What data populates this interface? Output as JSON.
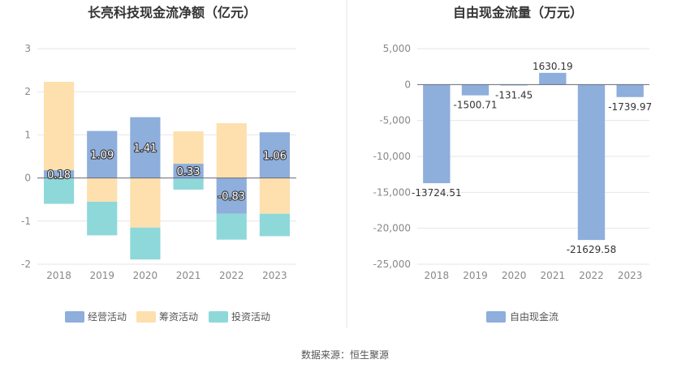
{
  "chart_data": [
    {
      "type": "bar",
      "stacked": true,
      "title": "长亮科技现金流净额（亿元）",
      "categories": [
        "2018",
        "2019",
        "2020",
        "2021",
        "2022",
        "2023"
      ],
      "series": [
        {
          "name": "经营活动",
          "values": [
            0.18,
            1.09,
            1.41,
            0.33,
            -0.83,
            1.06
          ],
          "color": "#8eaedc"
        },
        {
          "name": "筹资活动",
          "values": [
            2.05,
            -0.55,
            -1.15,
            0.75,
            1.27,
            -0.83
          ],
          "color": "#fde0ad"
        },
        {
          "name": "投资活动",
          "values": [
            -0.6,
            -0.78,
            -0.74,
            -0.27,
            -0.6,
            -0.52
          ],
          "color": "#8ed8da"
        }
      ],
      "data_labels": [
        "0.18",
        "1.09",
        "1.41",
        "0.33",
        "-0.83",
        "1.06"
      ],
      "ylim": [
        -2,
        3
      ],
      "yticks": [
        "-2",
        "-1",
        "0",
        "1",
        "2",
        "3"
      ],
      "grid": true,
      "legend": "bottom"
    },
    {
      "type": "bar",
      "title": "自由现金流量（万元）",
      "categories": [
        "2018",
        "2019",
        "2020",
        "2021",
        "2022",
        "2023"
      ],
      "series": [
        {
          "name": "自由现金流",
          "values": [
            -13724.51,
            -1500.71,
            -131.45,
            1630.19,
            -21629.58,
            -1739.97
          ],
          "color": "#8eaedc"
        }
      ],
      "data_labels": [
        "-13724.51",
        "-1500.71",
        "-131.45",
        "1630.19",
        "-21629.58",
        "-1739.97"
      ],
      "ylim": [
        -25000,
        5000
      ],
      "yticks": [
        "-25,000",
        "-20,000",
        "-15,000",
        "-10,000",
        "-5,000",
        "0",
        "5,000"
      ],
      "grid": true,
      "legend": "bottom"
    }
  ],
  "source": "数据来源：恒生聚源"
}
